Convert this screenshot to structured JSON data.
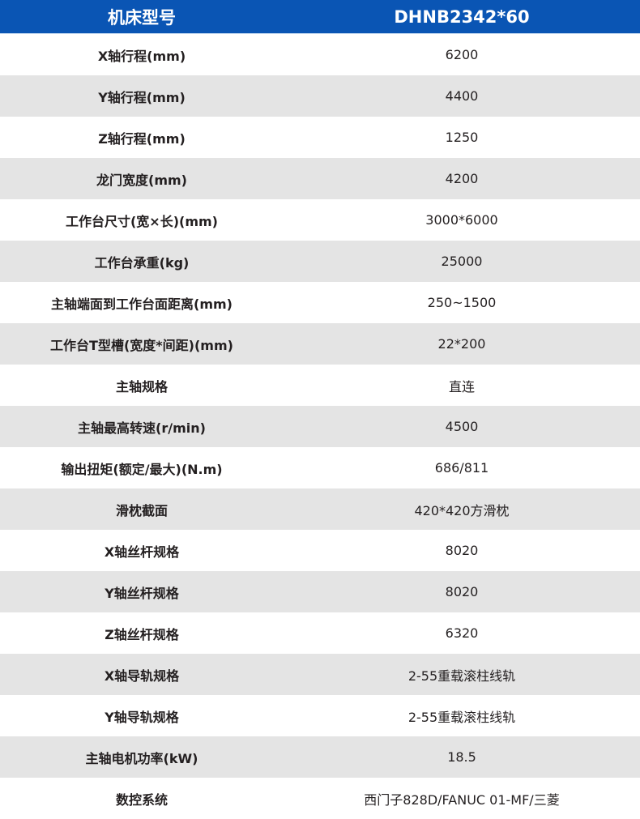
{
  "header": {
    "label": "机床型号",
    "model": "DHNB2342*60"
  },
  "colors": {
    "header_bg": "#0a55b4",
    "stripe": "#e4e4e4"
  },
  "rows": [
    {
      "label": "X轴行程(mm)",
      "value": "6200"
    },
    {
      "label": "Y轴行程(mm)",
      "value": "4400"
    },
    {
      "label": "Z轴行程(mm)",
      "value": "1250"
    },
    {
      "label": "龙门宽度(mm)",
      "value": "4200"
    },
    {
      "label": "工作台尺寸(宽×长)(mm)",
      "value": "3000*6000"
    },
    {
      "label": "工作台承重(kg)",
      "value": "25000"
    },
    {
      "label": "主轴端面到工作台面距离(mm)",
      "value": "250~1500"
    },
    {
      "label": "工作台T型槽(宽度*间距)(mm)",
      "value": "22*200"
    },
    {
      "label": "主轴规格",
      "value": "直连"
    },
    {
      "label": "主轴最高转速(r/min)",
      "value": "4500"
    },
    {
      "label": "输出扭矩(额定/最大)(N.m)",
      "value": "686/811"
    },
    {
      "label": "滑枕截面",
      "value": "420*420方滑枕"
    },
    {
      "label": "X轴丝杆规格",
      "value": "8020"
    },
    {
      "label": "Y轴丝杆规格",
      "value": "8020"
    },
    {
      "label": "Z轴丝杆规格",
      "value": "6320"
    },
    {
      "label": "X轴导轨规格",
      "value": "2-55重载滚柱线轨"
    },
    {
      "label": "Y轴导轨规格",
      "value": "2-55重载滚柱线轨"
    },
    {
      "label": "主轴电机功率(kW)",
      "value": "18.5"
    },
    {
      "label": "数控系统",
      "value": "西门子828D/FANUC 01-MF/三菱"
    }
  ]
}
